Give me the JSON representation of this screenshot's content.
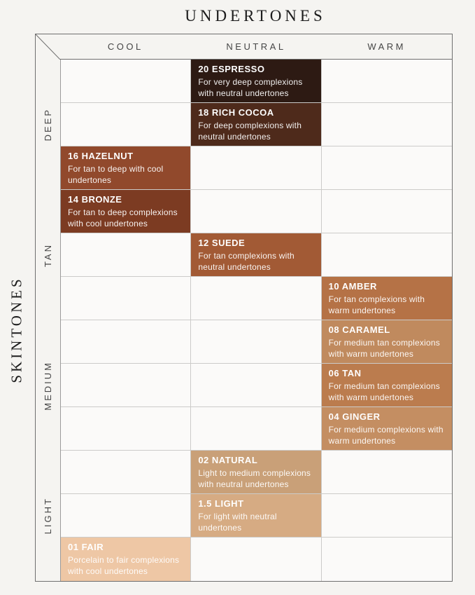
{
  "chart_data": {
    "type": "table",
    "title": "UNDERTONES",
    "row_axis_label": "SKINTONES",
    "columns": [
      "COOL",
      "NEUTRAL",
      "WARM"
    ],
    "num_rows": 12,
    "row_groups": [
      {
        "label": "DEEP",
        "rows": [
          1,
          2,
          3
        ]
      },
      {
        "label": "TAN",
        "rows": [
          4,
          5,
          6
        ]
      },
      {
        "label": "MEDIUM",
        "rows": [
          7,
          8,
          9
        ]
      },
      {
        "label": "LIGHT",
        "rows": [
          10,
          11,
          12
        ]
      }
    ],
    "shades": [
      {
        "row": 1,
        "undertone": "NEUTRAL",
        "name": "20 ESPRESSO",
        "description": "For very deep complexions with neutral undertones",
        "swatch_color": "#2d1a13"
      },
      {
        "row": 2,
        "undertone": "NEUTRAL",
        "name": "18 RICH COCOA",
        "description": "For deep complexions with neutral undertones",
        "swatch_color": "#4e2a1b"
      },
      {
        "row": 3,
        "undertone": "COOL",
        "name": "16 HAZELNUT",
        "description": "For tan to deep with cool undertones",
        "swatch_color": "#91492c"
      },
      {
        "row": 4,
        "undertone": "COOL",
        "name": "14 BRONZE",
        "description": "For tan to deep complexions with cool undertones",
        "swatch_color": "#7c3b22"
      },
      {
        "row": 5,
        "undertone": "NEUTRAL",
        "name": "12 SUEDE",
        "description": "For tan complexions with neutral undertones",
        "swatch_color": "#a25a35"
      },
      {
        "row": 6,
        "undertone": "WARM",
        "name": "10 AMBER",
        "description": "For tan complexions with warm undertones",
        "swatch_color": "#b57246"
      },
      {
        "row": 7,
        "undertone": "WARM",
        "name": "08 CARAMEL",
        "description": "For medium tan complexions with warm undertones",
        "swatch_color": "#c08a5e"
      },
      {
        "row": 8,
        "undertone": "WARM",
        "name": "06 TAN",
        "description": "For medium tan complexions with warm undertones",
        "swatch_color": "#bb7c4e"
      },
      {
        "row": 9,
        "undertone": "WARM",
        "name": "04 GINGER",
        "description": "For medium complexions with warm undertones",
        "swatch_color": "#c48e62"
      },
      {
        "row": 10,
        "undertone": "NEUTRAL",
        "name": "02 NATURAL",
        "description": "Light to medium complexions with neutral undertones",
        "swatch_color": "#c9a078"
      },
      {
        "row": 11,
        "undertone": "NEUTRAL",
        "name": "1.5 LIGHT",
        "description": "For light with neutral undertones",
        "swatch_color": "#d6ab83"
      },
      {
        "row": 12,
        "undertone": "COOL",
        "name": "01 FAIR",
        "description": "Porcelain to fair complexions with cool undertones",
        "swatch_color": "#eec7a5"
      }
    ]
  },
  "colors": {
    "page_bg": "#f5f4f1",
    "cell_bg": "#fbfaf9",
    "outer_border": "#6f6f6f",
    "midline": "#9a9a9a",
    "inner_gridline": "#cccbc9",
    "header_text": "#454545",
    "title_text": "#1c1c1c",
    "shade_text": "#ffffff"
  }
}
